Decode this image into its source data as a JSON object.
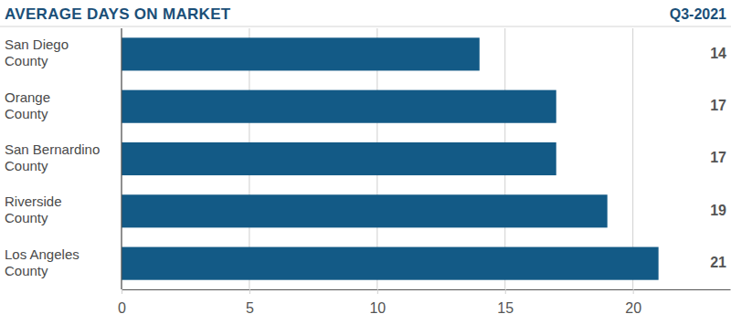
{
  "chart_data": {
    "type": "bar",
    "orientation": "horizontal",
    "title": "AVERAGE DAYS ON MARKET",
    "subtitle": "Q3-2021",
    "categories": [
      "San Diego County",
      "Orange County",
      "San Bernardino County",
      "Riverside County",
      "Los Angeles County"
    ],
    "values": [
      14,
      17,
      17,
      19,
      21
    ],
    "color": "#135a86",
    "xlim": [
      0,
      23.8
    ],
    "xticks": [
      0,
      5,
      10,
      15,
      20
    ],
    "grid": true,
    "data_labels": true
  }
}
